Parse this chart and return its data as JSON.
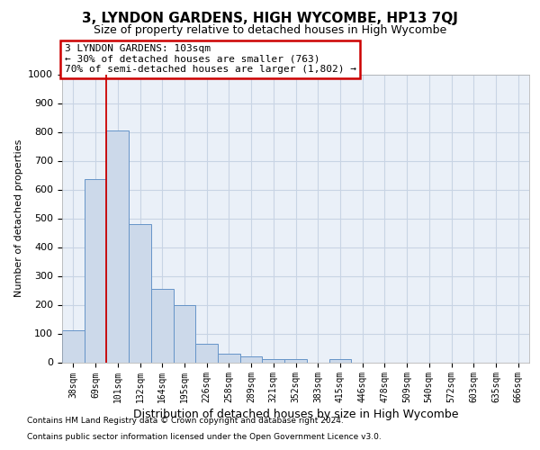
{
  "title": "3, LYNDON GARDENS, HIGH WYCOMBE, HP13 7QJ",
  "subtitle": "Size of property relative to detached houses in High Wycombe",
  "xlabel": "Distribution of detached houses by size in High Wycombe",
  "ylabel": "Number of detached properties",
  "footer_line1": "Contains HM Land Registry data © Crown copyright and database right 2024.",
  "footer_line2": "Contains public sector information licensed under the Open Government Licence v3.0.",
  "bar_labels": [
    "38sqm",
    "69sqm",
    "101sqm",
    "132sqm",
    "164sqm",
    "195sqm",
    "226sqm",
    "258sqm",
    "289sqm",
    "321sqm",
    "352sqm",
    "383sqm",
    "415sqm",
    "446sqm",
    "478sqm",
    "509sqm",
    "540sqm",
    "572sqm",
    "603sqm",
    "635sqm",
    "666sqm"
  ],
  "bar_values": [
    110,
    635,
    805,
    480,
    255,
    200,
    65,
    30,
    20,
    10,
    10,
    0,
    10,
    0,
    0,
    0,
    0,
    0,
    0,
    0,
    0
  ],
  "bar_color": "#ccd9ea",
  "bar_edge_color": "#6694c8",
  "red_line_x": 2,
  "annotation_line1": "3 LYNDON GARDENS: 103sqm",
  "annotation_line2": "← 30% of detached houses are smaller (763)",
  "annotation_line3": "70% of semi-detached houses are larger (1,802) →",
  "annotation_box_color": "#cc0000",
  "ylim": [
    0,
    1000
  ],
  "yticks": [
    0,
    100,
    200,
    300,
    400,
    500,
    600,
    700,
    800,
    900,
    1000
  ],
  "grid_color": "#c8d4e4",
  "background_color": "#eaf0f8",
  "title_fontsize": 11,
  "subtitle_fontsize": 9,
  "ylabel_fontsize": 8,
  "xlabel_fontsize": 9,
  "tick_fontsize": 8,
  "xtick_fontsize": 7,
  "annotation_fontsize": 8,
  "footer_fontsize": 6.5
}
